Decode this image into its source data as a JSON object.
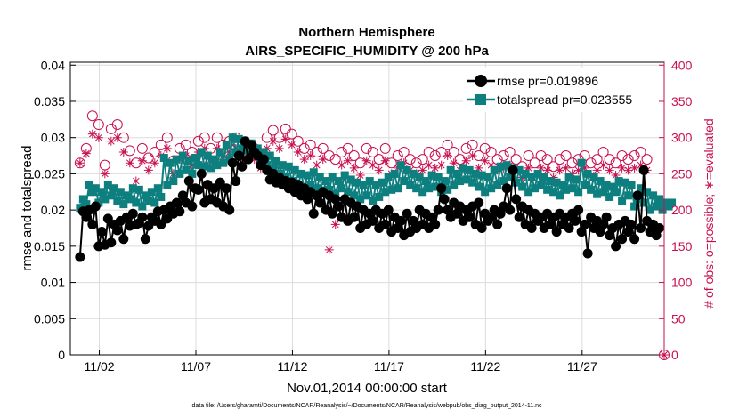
{
  "chart_data": {
    "type": "line",
    "title": "Northern Hemisphere",
    "subtitle": "AIRS_SPECIFIC_HUMIDITY @ 200 hPa",
    "xlabel": "Nov.01,2014 00:00:00 start",
    "ylabel": "rmse and totalspread",
    "y2label": "# of obs: o=possible; ∗=evaluated",
    "footnote": "data file: /Users/gharamti/Documents/NCAR/Reanalysis/~/Documents/NCAR/Reanalysis/webpub/obs_diag_output_2014-11.nc",
    "xlim": [
      0.5,
      31.25
    ],
    "ylim": [
      0,
      0.0404
    ],
    "y2lim": [
      0,
      404
    ],
    "x_ticks": [
      2,
      7,
      12,
      17,
      22,
      27
    ],
    "x_tick_labels": [
      "11/02",
      "11/07",
      "11/12",
      "11/17",
      "11/22",
      "11/27"
    ],
    "y_ticks": [
      0,
      0.005,
      0.01,
      0.015,
      0.02,
      0.025,
      0.03,
      0.035,
      0.04
    ],
    "y_tick_labels": [
      "0",
      "0.005",
      "0.01",
      "0.015",
      "0.02",
      "0.025",
      "0.03",
      "0.035",
      "0.04"
    ],
    "y2_ticks": [
      0,
      50,
      100,
      150,
      200,
      250,
      300,
      350,
      400
    ],
    "y2_tick_labels": [
      "0",
      "50",
      "100",
      "150",
      "200",
      "250",
      "300",
      "350",
      "400"
    ],
    "grid": true,
    "legend_position": "top-right",
    "colors": {
      "rmse": "#000000",
      "totalspread": "#0e7f7f",
      "obs": "#c8104f"
    },
    "series": [
      {
        "name": "rmse",
        "legend": "rmse pr=0.019896",
        "marker": "circle",
        "values": [
          0.0135,
          0.0198,
          0.019,
          0.02,
          0.018,
          0.0205,
          0.015,
          0.017,
          0.0152,
          0.0188,
          0.0155,
          0.018,
          0.0172,
          0.0185,
          0.016,
          0.019,
          0.0178,
          0.0195,
          0.018,
          0.0182,
          0.019,
          0.016,
          0.0178,
          0.019,
          0.0185,
          0.0198,
          0.018,
          0.02,
          0.0188,
          0.0205,
          0.0195,
          0.021,
          0.0198,
          0.022,
          0.021,
          0.024,
          0.0205,
          0.023,
          0.0228,
          0.025,
          0.021,
          0.0235,
          0.0215,
          0.023,
          0.021,
          0.0238,
          0.0205,
          0.023,
          0.02,
          0.0265,
          0.024,
          0.0275,
          0.026,
          0.0295,
          0.027,
          0.029,
          0.028,
          0.0275,
          0.0262,
          0.027,
          0.0255,
          0.0242,
          0.025,
          0.0238,
          0.0245,
          0.0235,
          0.024,
          0.023,
          0.0238,
          0.0225,
          0.0235,
          0.022,
          0.023,
          0.0215,
          0.0225,
          0.0195,
          0.022,
          0.021,
          0.0225,
          0.02,
          0.022,
          0.0195,
          0.0215,
          0.0205,
          0.019,
          0.0215,
          0.0185,
          0.021,
          0.019,
          0.0205,
          0.0175,
          0.02,
          0.018,
          0.0195,
          0.0185,
          0.02,
          0.0175,
          0.0195,
          0.018,
          0.02,
          0.017,
          0.019,
          0.0175,
          0.0185,
          0.0165,
          0.0195,
          0.017,
          0.0185,
          0.0175,
          0.02,
          0.018,
          0.0195,
          0.0175,
          0.019,
          0.018,
          0.02,
          0.023,
          0.0215,
          0.02,
          0.019,
          0.021,
          0.0195,
          0.0205,
          0.0185,
          0.02,
          0.019,
          0.0205,
          0.018,
          0.021,
          0.0175,
          0.0195,
          0.0185,
          0.019,
          0.02,
          0.018,
          0.0195,
          0.0205,
          0.023,
          0.02,
          0.0255,
          0.0215,
          0.019,
          0.0205,
          0.018,
          0.02,
          0.0175,
          0.0195,
          0.0185,
          0.019,
          0.0175,
          0.0195,
          0.018,
          0.019,
          0.017,
          0.0195,
          0.018,
          0.019,
          0.0175,
          0.0195,
          0.0185,
          0.02,
          0.017,
          0.018,
          0.014,
          0.019,
          0.0175,
          0.0185,
          0.017,
          0.018,
          0.019,
          0.0165,
          0.0175,
          0.015,
          0.018,
          0.016,
          0.0185,
          0.017,
          0.018,
          0.016,
          0.022,
          0.0175,
          0.0255,
          0.0185,
          0.017,
          0.018,
          0.0165,
          0.0175
        ]
      },
      {
        "name": "totalspread",
        "legend": "totalspread pr=0.023555",
        "marker": "square",
        "values": [
          0.0203,
          0.0215,
          0.0208,
          0.0235,
          0.0225,
          0.023,
          0.021,
          0.0225,
          0.0215,
          0.0235,
          0.022,
          0.023,
          0.0212,
          0.0225,
          0.0208,
          0.022,
          0.0215,
          0.023,
          0.021,
          0.0228,
          0.0205,
          0.022,
          0.0212,
          0.0225,
          0.021,
          0.023,
          0.0218,
          0.0272,
          0.0235,
          0.0265,
          0.024,
          0.027,
          0.025,
          0.0275,
          0.0255,
          0.0268,
          0.025,
          0.0272,
          0.0262,
          0.028,
          0.026,
          0.0275,
          0.0258,
          0.027,
          0.0262,
          0.028,
          0.0265,
          0.029,
          0.027,
          0.03,
          0.028,
          0.0298,
          0.0285,
          0.0295,
          0.0282,
          0.0292,
          0.0278,
          0.0285,
          0.027,
          0.028,
          0.0262,
          0.0275,
          0.0258,
          0.0268,
          0.025,
          0.0262,
          0.0245,
          0.026,
          0.024,
          0.0255,
          0.0235,
          0.025,
          0.023,
          0.0248,
          0.0235,
          0.0252,
          0.023,
          0.0245,
          0.0225,
          0.024,
          0.0228,
          0.0245,
          0.0222,
          0.024,
          0.023,
          0.0248,
          0.0225,
          0.0242,
          0.022,
          0.0238,
          0.0215,
          0.0235,
          0.022,
          0.024,
          0.0212,
          0.0235,
          0.0218,
          0.0238,
          0.0225,
          0.0245,
          0.0228,
          0.025,
          0.023,
          0.0262,
          0.024,
          0.0255,
          0.0235,
          0.025,
          0.023,
          0.0245,
          0.0225,
          0.024,
          0.023,
          0.0248,
          0.0232,
          0.0245,
          0.0225,
          0.024,
          0.0228,
          0.0255,
          0.0235,
          0.025,
          0.024,
          0.0258,
          0.0242,
          0.0255,
          0.0238,
          0.025,
          0.0232,
          0.0248,
          0.0225,
          0.0245,
          0.023,
          0.0255,
          0.0235,
          0.026,
          0.024,
          0.0262,
          0.0245,
          0.0258,
          0.0238,
          0.0255,
          0.0232,
          0.025,
          0.0225,
          0.0245,
          0.023,
          0.025,
          0.0235,
          0.0245,
          0.0228,
          0.024,
          0.0225,
          0.0238,
          0.022,
          0.0235,
          0.0228,
          0.0245,
          0.023,
          0.0242,
          0.0225,
          0.0265,
          0.0235,
          0.025,
          0.0228,
          0.0245,
          0.0222,
          0.024,
          0.0225,
          0.0235,
          0.0218,
          0.0232,
          0.0225,
          0.024,
          0.0212,
          0.0238,
          0.022,
          0.0235,
          0.0205,
          0.0215,
          0.023,
          0.021,
          0.0225,
          0.02,
          0.022,
          0.0205,
          0.0215,
          0.02,
          0.021,
          0.0205,
          0.021
        ]
      },
      {
        "name": "obs_possible",
        "marker": "open-circle",
        "axis": "right",
        "values": [
          265,
          302,
          285,
          292,
          330,
          305,
          318,
          290,
          262,
          295,
          312,
          300,
          318,
          272,
          300,
          270,
          282,
          295,
          265,
          288,
          285,
          300,
          272,
          278,
          280,
          300,
          290,
          305,
          300,
          298,
          268,
          310,
          285,
          305,
          290,
          312,
          280,
          318,
          295,
          330,
          300,
          318,
          285,
          310,
          300,
          320,
          290,
          315,
          295,
          305,
          300,
          315,
          280,
          298,
          290,
          308,
          285,
          300,
          275,
          295,
          300,
          290,
          310,
          285,
          300,
          280,
          312,
          290,
          305,
          300,
          295,
          320,
          285,
          310,
          290,
          315,
          280,
          300,
          285,
          305,
          275,
          300,
          270,
          290,
          280,
          310,
          285,
          300,
          275,
          290,
          265,
          300,
          285,
          305,
          280,
          300,
          270,
          295,
          285,
          300,
          265,
          290,
          275,
          295,
          280,
          300,
          270,
          290,
          265,
          285,
          270,
          300,
          280,
          295,
          275,
          290,
          280,
          300,
          290,
          305,
          280,
          300,
          270,
          290,
          285,
          305,
          290,
          300,
          275,
          295,
          285,
          300,
          280,
          290,
          270,
          285,
          275,
          295,
          280,
          290,
          270,
          280,
          260,
          285,
          275,
          290,
          265,
          280,
          275,
          290,
          270,
          285,
          260,
          280,
          270,
          285,
          275,
          290,
          265,
          280,
          270,
          285,
          275,
          290,
          265,
          280,
          270,
          290,
          280,
          300,
          270,
          290,
          265,
          280,
          275,
          295,
          270,
          285,
          275,
          290,
          280,
          300,
          270,
          285
        ]
      },
      {
        "name": "obs_evaluated",
        "marker": "asterisk",
        "axis": "right",
        "values": [
          265,
          295,
          278,
          285,
          305,
          290,
          300,
          282,
          250,
          280,
          295,
          285,
          300,
          235,
          280,
          240,
          265,
          275,
          240,
          270,
          268,
          285,
          255,
          262,
          265,
          285,
          275,
          290,
          285,
          280,
          250,
          295,
          270,
          290,
          275,
          298,
          262,
          300,
          280,
          310,
          285,
          300,
          270,
          295,
          285,
          305,
          275,
          300,
          280,
          290,
          285,
          300,
          265,
          282,
          275,
          292,
          270,
          285,
          258,
          280,
          285,
          275,
          295,
          270,
          285,
          262,
          298,
          275,
          290,
          285,
          280,
          300,
          270,
          295,
          275,
          300,
          262,
          285,
          270,
          290,
          145,
          285,
          180,
          275,
          262,
          295,
          268,
          285,
          258,
          275,
          248,
          285,
          268,
          290,
          262,
          285,
          255,
          280,
          268,
          285,
          250,
          275,
          258,
          280,
          265,
          285,
          255,
          275,
          250,
          268,
          255,
          285,
          262,
          280,
          258,
          275,
          262,
          285,
          275,
          290,
          265,
          285,
          255,
          275,
          268,
          290,
          275,
          285,
          258,
          280,
          268,
          285,
          262,
          275,
          255,
          270,
          258,
          280,
          262,
          275,
          255,
          265,
          245,
          268,
          258,
          275,
          248,
          265,
          258,
          275,
          255,
          268,
          245,
          265,
          255,
          270,
          258,
          275,
          250,
          265,
          255,
          268,
          258,
          275,
          248,
          265,
          255,
          275,
          262,
          285,
          255,
          275,
          248,
          265,
          258,
          280,
          255,
          270,
          258,
          275,
          262,
          285,
          255,
          270
        ]
      }
    ],
    "right_axis_marker_at_origin": {
      "x": 31.25,
      "y": 0
    }
  }
}
